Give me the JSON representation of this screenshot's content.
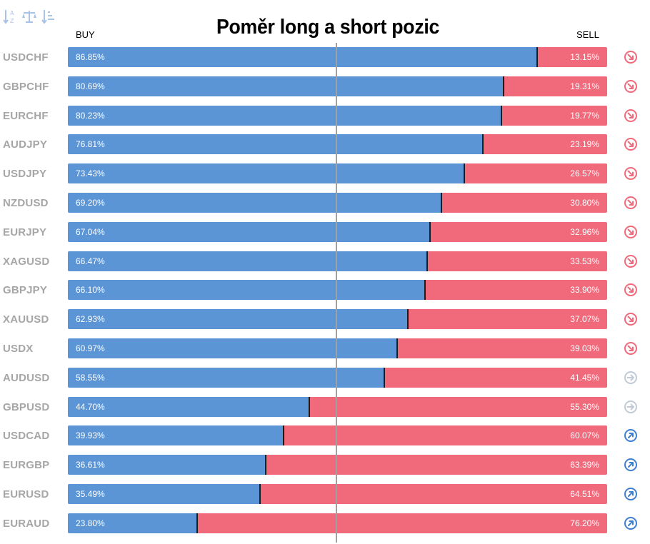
{
  "chart_data": {
    "type": "bar",
    "orientation": "horizontal-stacked",
    "title": "Poměr long a short pozic",
    "legend": {
      "buy": "BUY",
      "sell": "SELL"
    },
    "colors": {
      "buy": "#5b95d6",
      "sell": "#f06a7b",
      "signal_down": "#f06a7b",
      "signal_neutral": "#c2cad6",
      "signal_up": "#3f7fd0"
    },
    "rows": [
      {
        "pair": "USDCHF",
        "buy": 86.85,
        "sell": 13.15,
        "buy_label": "86.85%",
        "sell_label": "13.15%",
        "signal": "down"
      },
      {
        "pair": "GBPCHF",
        "buy": 80.69,
        "sell": 19.31,
        "buy_label": "80.69%",
        "sell_label": "19.31%",
        "signal": "down"
      },
      {
        "pair": "EURCHF",
        "buy": 80.23,
        "sell": 19.77,
        "buy_label": "80.23%",
        "sell_label": "19.77%",
        "signal": "down"
      },
      {
        "pair": "AUDJPY",
        "buy": 76.81,
        "sell": 23.19,
        "buy_label": "76.81%",
        "sell_label": "23.19%",
        "signal": "down"
      },
      {
        "pair": "USDJPY",
        "buy": 73.43,
        "sell": 26.57,
        "buy_label": "73.43%",
        "sell_label": "26.57%",
        "signal": "down"
      },
      {
        "pair": "NZDUSD",
        "buy": 69.2,
        "sell": 30.8,
        "buy_label": "69.20%",
        "sell_label": "30.80%",
        "signal": "down"
      },
      {
        "pair": "EURJPY",
        "buy": 67.04,
        "sell": 32.96,
        "buy_label": "67.04%",
        "sell_label": "32.96%",
        "signal": "down"
      },
      {
        "pair": "XAGUSD",
        "buy": 66.47,
        "sell": 33.53,
        "buy_label": "66.47%",
        "sell_label": "33.53%",
        "signal": "down"
      },
      {
        "pair": "GBPJPY",
        "buy": 66.1,
        "sell": 33.9,
        "buy_label": "66.10%",
        "sell_label": "33.90%",
        "signal": "down"
      },
      {
        "pair": "XAUUSD",
        "buy": 62.93,
        "sell": 37.07,
        "buy_label": "62.93%",
        "sell_label": "37.07%",
        "signal": "down"
      },
      {
        "pair": "USDX",
        "buy": 60.97,
        "sell": 39.03,
        "buy_label": "60.97%",
        "sell_label": "39.03%",
        "signal": "down"
      },
      {
        "pair": "AUDUSD",
        "buy": 58.55,
        "sell": 41.45,
        "buy_label": "58.55%",
        "sell_label": "41.45%",
        "signal": "neutral"
      },
      {
        "pair": "GBPUSD",
        "buy": 44.7,
        "sell": 55.3,
        "buy_label": "44.70%",
        "sell_label": "55.30%",
        "signal": "neutral"
      },
      {
        "pair": "USDCAD",
        "buy": 39.93,
        "sell": 60.07,
        "buy_label": "39.93%",
        "sell_label": "60.07%",
        "signal": "up"
      },
      {
        "pair": "EURGBP",
        "buy": 36.61,
        "sell": 63.39,
        "buy_label": "36.61%",
        "sell_label": "63.39%",
        "signal": "up"
      },
      {
        "pair": "EURUSD",
        "buy": 35.49,
        "sell": 64.51,
        "buy_label": "35.49%",
        "sell_label": "64.51%",
        "signal": "up"
      },
      {
        "pair": "EURAUD",
        "buy": 23.8,
        "sell": 76.2,
        "buy_label": "23.80%",
        "sell_label": "76.20%",
        "signal": "up"
      }
    ]
  },
  "toolbar": {
    "icons": [
      "sort-alpha-icon",
      "balance-scale-icon",
      "sort-amount-icon"
    ]
  }
}
